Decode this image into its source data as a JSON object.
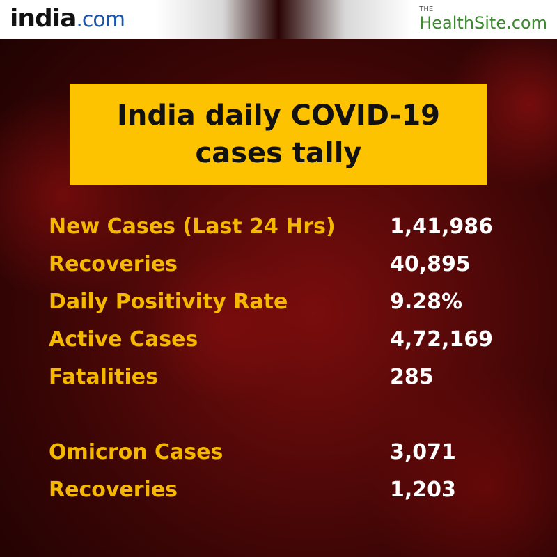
{
  "header": {
    "left_logo": {
      "name": "india",
      "suffix": ".com"
    },
    "right_logo": {
      "prefix": "THE",
      "name": "HealthSite.com"
    }
  },
  "title": "India daily COVID-19 cases tally",
  "sections": [
    {
      "rows": [
        [
          "New Cases (Last 24 Hrs)",
          "1,41,986"
        ],
        [
          "Recoveries",
          "40,895"
        ],
        [
          "Daily Positivity Rate",
          "9.28%"
        ],
        [
          "Active Cases",
          "4,72,169"
        ],
        [
          "Fatalities",
          "285"
        ]
      ]
    },
    {
      "rows": [
        [
          "Omicron Cases",
          "3,071"
        ],
        [
          "Recoveries",
          "1,203"
        ]
      ]
    }
  ]
}
